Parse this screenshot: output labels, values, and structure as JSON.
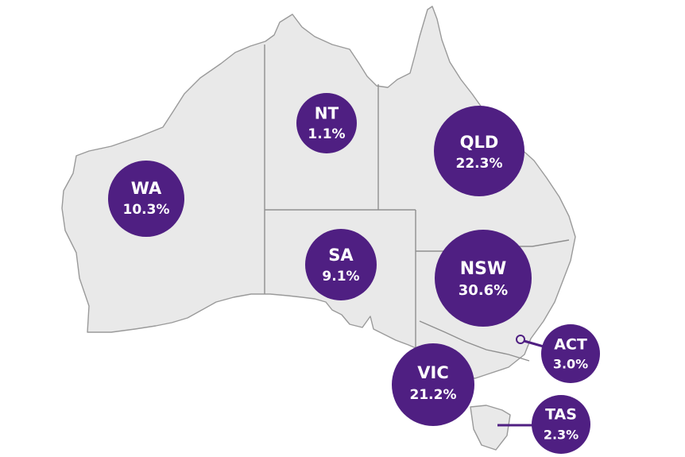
{
  "colors": {
    "bubble": "#4f1f82",
    "land": "#e9e9e9",
    "outline": "#9a9a9a",
    "label_text": "#ffffff"
  },
  "regions": {
    "wa": {
      "name": "WA",
      "value": "10.3%"
    },
    "nt": {
      "name": "NT",
      "value": "1.1%"
    },
    "qld": {
      "name": "QLD",
      "value": "22.3%"
    },
    "sa": {
      "name": "SA",
      "value": "9.1%"
    },
    "nsw": {
      "name": "NSW",
      "value": "30.6%"
    },
    "act": {
      "name": "ACT",
      "value": "3.0%"
    },
    "vic": {
      "name": "VIC",
      "value": "21.2%"
    },
    "tas": {
      "name": "TAS",
      "value": "2.3%"
    }
  }
}
